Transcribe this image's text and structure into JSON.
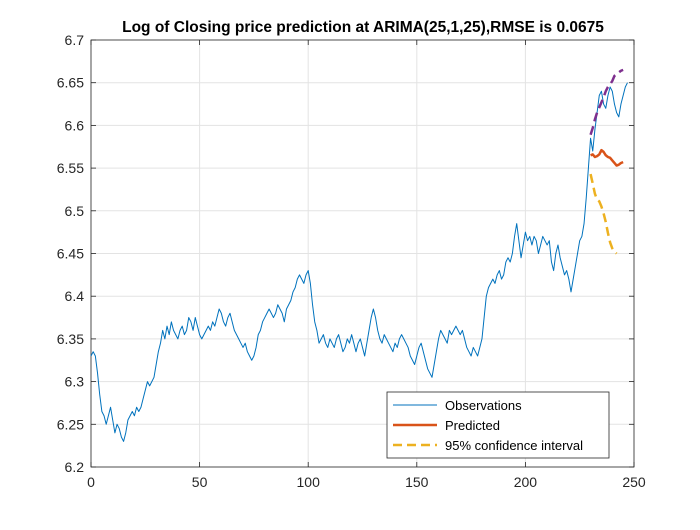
{
  "chart_data": {
    "type": "line",
    "title": "Log of Closing price prediction at ARIMA(25,1,25),RMSE is 0.0675",
    "xlabel": "",
    "ylabel": "",
    "xlim": [
      0,
      250
    ],
    "ylim": [
      6.2,
      6.7
    ],
    "xticks": [
      0,
      50,
      100,
      150,
      200,
      250
    ],
    "yticks": [
      6.2,
      6.25,
      6.3,
      6.35,
      6.4,
      6.45,
      6.5,
      6.55,
      6.6,
      6.65,
      6.7
    ],
    "grid": true,
    "legend_position": "bottom-right",
    "colors": {
      "observations": "#0072BD",
      "predicted": "#D95319",
      "confidence": "#EDB120",
      "upper_bound": "#7E2F8E"
    },
    "series": [
      {
        "name": "Observations",
        "style": "solid",
        "points": [
          [
            0,
            6.33
          ],
          [
            1,
            6.335
          ],
          [
            2,
            6.33
          ],
          [
            3,
            6.31
          ],
          [
            4,
            6.285
          ],
          [
            5,
            6.265
          ],
          [
            6,
            6.26
          ],
          [
            7,
            6.25
          ],
          [
            8,
            6.26
          ],
          [
            9,
            6.27
          ],
          [
            10,
            6.255
          ],
          [
            11,
            6.24
          ],
          [
            12,
            6.25
          ],
          [
            13,
            6.245
          ],
          [
            14,
            6.235
          ],
          [
            15,
            6.23
          ],
          [
            16,
            6.24
          ],
          [
            17,
            6.255
          ],
          [
            18,
            6.26
          ],
          [
            19,
            6.265
          ],
          [
            20,
            6.26
          ],
          [
            21,
            6.27
          ],
          [
            22,
            6.265
          ],
          [
            23,
            6.27
          ],
          [
            24,
            6.28
          ],
          [
            25,
            6.29
          ],
          [
            26,
            6.3
          ],
          [
            27,
            6.295
          ],
          [
            28,
            6.3
          ],
          [
            29,
            6.305
          ],
          [
            30,
            6.32
          ],
          [
            31,
            6.335
          ],
          [
            32,
            6.345
          ],
          [
            33,
            6.36
          ],
          [
            34,
            6.35
          ],
          [
            35,
            6.365
          ],
          [
            36,
            6.355
          ],
          [
            37,
            6.37
          ],
          [
            38,
            6.36
          ],
          [
            39,
            6.355
          ],
          [
            40,
            6.35
          ],
          [
            41,
            6.36
          ],
          [
            42,
            6.365
          ],
          [
            43,
            6.355
          ],
          [
            44,
            6.36
          ],
          [
            45,
            6.375
          ],
          [
            46,
            6.37
          ],
          [
            47,
            6.36
          ],
          [
            48,
            6.375
          ],
          [
            49,
            6.365
          ],
          [
            50,
            6.355
          ],
          [
            51,
            6.35
          ],
          [
            52,
            6.355
          ],
          [
            53,
            6.36
          ],
          [
            54,
            6.365
          ],
          [
            55,
            6.36
          ],
          [
            56,
            6.37
          ],
          [
            57,
            6.365
          ],
          [
            58,
            6.375
          ],
          [
            59,
            6.385
          ],
          [
            60,
            6.38
          ],
          [
            61,
            6.37
          ],
          [
            62,
            6.365
          ],
          [
            63,
            6.375
          ],
          [
            64,
            6.38
          ],
          [
            65,
            6.37
          ],
          [
            66,
            6.36
          ],
          [
            67,
            6.355
          ],
          [
            68,
            6.35
          ],
          [
            69,
            6.345
          ],
          [
            70,
            6.34
          ],
          [
            71,
            6.345
          ],
          [
            72,
            6.335
          ],
          [
            73,
            6.33
          ],
          [
            74,
            6.325
          ],
          [
            75,
            6.33
          ],
          [
            76,
            6.34
          ],
          [
            77,
            6.355
          ],
          [
            78,
            6.36
          ],
          [
            79,
            6.37
          ],
          [
            80,
            6.375
          ],
          [
            81,
            6.38
          ],
          [
            82,
            6.385
          ],
          [
            83,
            6.38
          ],
          [
            84,
            6.375
          ],
          [
            85,
            6.38
          ],
          [
            86,
            6.39
          ],
          [
            87,
            6.385
          ],
          [
            88,
            6.38
          ],
          [
            89,
            6.37
          ],
          [
            90,
            6.385
          ],
          [
            91,
            6.39
          ],
          [
            92,
            6.395
          ],
          [
            93,
            6.405
          ],
          [
            94,
            6.41
          ],
          [
            95,
            6.42
          ],
          [
            96,
            6.425
          ],
          [
            97,
            6.42
          ],
          [
            98,
            6.415
          ],
          [
            99,
            6.425
          ],
          [
            100,
            6.43
          ],
          [
            101,
            6.415
          ],
          [
            102,
            6.39
          ],
          [
            103,
            6.37
          ],
          [
            104,
            6.36
          ],
          [
            105,
            6.345
          ],
          [
            106,
            6.35
          ],
          [
            107,
            6.355
          ],
          [
            108,
            6.345
          ],
          [
            109,
            6.34
          ],
          [
            110,
            6.35
          ],
          [
            111,
            6.345
          ],
          [
            112,
            6.34
          ],
          [
            113,
            6.35
          ],
          [
            114,
            6.355
          ],
          [
            115,
            6.345
          ],
          [
            116,
            6.335
          ],
          [
            117,
            6.34
          ],
          [
            118,
            6.35
          ],
          [
            119,
            6.345
          ],
          [
            120,
            6.355
          ],
          [
            121,
            6.345
          ],
          [
            122,
            6.335
          ],
          [
            123,
            6.345
          ],
          [
            124,
            6.35
          ],
          [
            125,
            6.34
          ],
          [
            126,
            6.33
          ],
          [
            127,
            6.345
          ],
          [
            128,
            6.36
          ],
          [
            129,
            6.375
          ],
          [
            130,
            6.385
          ],
          [
            131,
            6.375
          ],
          [
            132,
            6.36
          ],
          [
            133,
            6.35
          ],
          [
            134,
            6.345
          ],
          [
            135,
            6.355
          ],
          [
            136,
            6.35
          ],
          [
            137,
            6.345
          ],
          [
            138,
            6.34
          ],
          [
            139,
            6.335
          ],
          [
            140,
            6.345
          ],
          [
            141,
            6.34
          ],
          [
            142,
            6.35
          ],
          [
            143,
            6.355
          ],
          [
            144,
            6.35
          ],
          [
            145,
            6.345
          ],
          [
            146,
            6.34
          ],
          [
            147,
            6.33
          ],
          [
            148,
            6.325
          ],
          [
            149,
            6.32
          ],
          [
            150,
            6.33
          ],
          [
            151,
            6.34
          ],
          [
            152,
            6.345
          ],
          [
            153,
            6.335
          ],
          [
            154,
            6.325
          ],
          [
            155,
            6.315
          ],
          [
            156,
            6.31
          ],
          [
            157,
            6.305
          ],
          [
            158,
            6.32
          ],
          [
            159,
            6.335
          ],
          [
            160,
            6.35
          ],
          [
            161,
            6.36
          ],
          [
            162,
            6.355
          ],
          [
            163,
            6.35
          ],
          [
            164,
            6.345
          ],
          [
            165,
            6.36
          ],
          [
            166,
            6.355
          ],
          [
            167,
            6.36
          ],
          [
            168,
            6.365
          ],
          [
            169,
            6.36
          ],
          [
            170,
            6.355
          ],
          [
            171,
            6.36
          ],
          [
            172,
            6.35
          ],
          [
            173,
            6.34
          ],
          [
            174,
            6.335
          ],
          [
            175,
            6.33
          ],
          [
            176,
            6.34
          ],
          [
            177,
            6.335
          ],
          [
            178,
            6.33
          ],
          [
            179,
            6.34
          ],
          [
            180,
            6.35
          ],
          [
            181,
            6.375
          ],
          [
            182,
            6.4
          ],
          [
            183,
            6.41
          ],
          [
            184,
            6.415
          ],
          [
            185,
            6.42
          ],
          [
            186,
            6.415
          ],
          [
            187,
            6.425
          ],
          [
            188,
            6.43
          ],
          [
            189,
            6.42
          ],
          [
            190,
            6.425
          ],
          [
            191,
            6.44
          ],
          [
            192,
            6.445
          ],
          [
            193,
            6.44
          ],
          [
            194,
            6.45
          ],
          [
            195,
            6.47
          ],
          [
            196,
            6.485
          ],
          [
            197,
            6.465
          ],
          [
            198,
            6.445
          ],
          [
            199,
            6.46
          ],
          [
            200,
            6.475
          ],
          [
            201,
            6.465
          ],
          [
            202,
            6.47
          ],
          [
            203,
            6.46
          ],
          [
            204,
            6.47
          ],
          [
            205,
            6.465
          ],
          [
            206,
            6.45
          ],
          [
            207,
            6.46
          ],
          [
            208,
            6.47
          ],
          [
            209,
            6.465
          ],
          [
            210,
            6.46
          ],
          [
            211,
            6.465
          ],
          [
            212,
            6.44
          ],
          [
            213,
            6.43
          ],
          [
            214,
            6.45
          ],
          [
            215,
            6.46
          ],
          [
            216,
            6.445
          ],
          [
            217,
            6.435
          ],
          [
            218,
            6.425
          ],
          [
            219,
            6.43
          ],
          [
            220,
            6.42
          ],
          [
            221,
            6.405
          ],
          [
            222,
            6.42
          ],
          [
            223,
            6.435
          ],
          [
            224,
            6.45
          ],
          [
            225,
            6.465
          ],
          [
            226,
            6.47
          ],
          [
            227,
            6.485
          ],
          [
            228,
            6.515
          ],
          [
            229,
            6.55
          ],
          [
            230,
            6.585
          ],
          [
            231,
            6.57
          ],
          [
            232,
            6.595
          ],
          [
            233,
            6.615
          ],
          [
            234,
            6.635
          ],
          [
            235,
            6.64
          ],
          [
            236,
            6.625
          ],
          [
            237,
            6.62
          ],
          [
            238,
            6.635
          ],
          [
            239,
            6.645
          ],
          [
            240,
            6.64
          ],
          [
            241,
            6.625
          ],
          [
            242,
            6.615
          ],
          [
            243,
            6.61
          ],
          [
            244,
            6.625
          ],
          [
            245,
            6.635
          ],
          [
            246,
            6.645
          ],
          [
            247,
            6.65
          ]
        ]
      },
      {
        "name": "Predicted",
        "style": "solid",
        "points": [
          [
            230,
            6.565
          ],
          [
            231,
            6.566
          ],
          [
            232,
            6.563
          ],
          [
            233,
            6.564
          ],
          [
            234,
            6.566
          ],
          [
            235,
            6.571
          ],
          [
            236,
            6.569
          ],
          [
            237,
            6.565
          ],
          [
            238,
            6.563
          ],
          [
            239,
            6.562
          ],
          [
            240,
            6.559
          ],
          [
            241,
            6.556
          ],
          [
            242,
            6.553
          ],
          [
            243,
            6.554
          ],
          [
            244,
            6.556
          ],
          [
            245,
            6.557
          ]
        ]
      },
      {
        "name": "95% confidence interval",
        "style": "dashed",
        "points": [
          [
            230,
            6.543
          ],
          [
            231,
            6.532
          ],
          [
            232,
            6.52
          ],
          [
            233,
            6.513
          ],
          [
            234,
            6.511
          ],
          [
            235,
            6.505
          ],
          [
            236,
            6.497
          ],
          [
            237,
            6.487
          ],
          [
            238,
            6.474
          ],
          [
            239,
            6.463
          ],
          [
            240,
            6.456
          ],
          [
            241,
            6.452
          ],
          [
            242,
            6.45
          ]
        ]
      },
      {
        "style": "dashed",
        "points": [
          [
            230,
            6.589
          ],
          [
            231,
            6.597
          ],
          [
            232,
            6.607
          ],
          [
            233,
            6.615
          ],
          [
            234,
            6.621
          ],
          [
            235,
            6.627
          ],
          [
            236,
            6.633
          ],
          [
            237,
            6.64
          ],
          [
            238,
            6.645
          ],
          [
            239,
            6.648
          ],
          [
            240,
            6.652
          ],
          [
            241,
            6.658
          ],
          [
            242,
            6.66
          ],
          [
            243,
            6.662
          ],
          [
            244,
            6.664
          ],
          [
            245,
            6.665
          ]
        ]
      }
    ]
  }
}
